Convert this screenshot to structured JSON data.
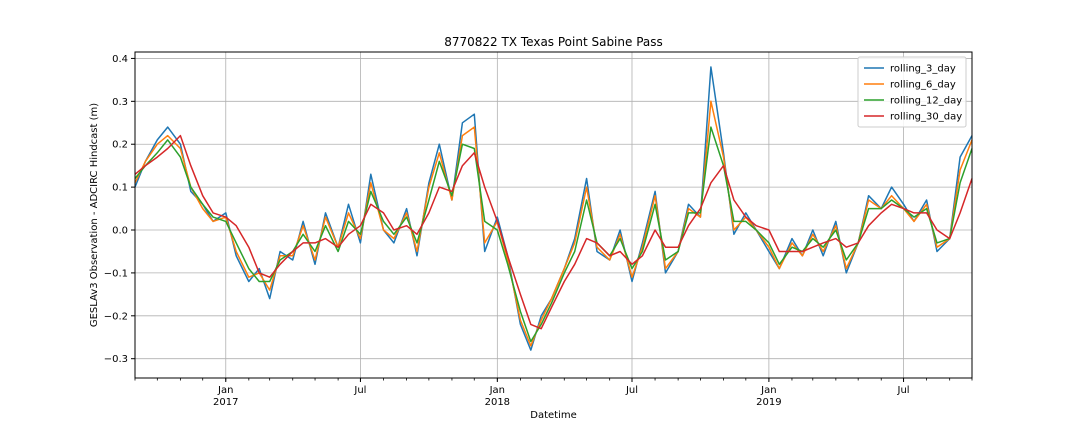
{
  "chart_data": {
    "type": "line",
    "title": "8770822 TX Texas Point Sabine Pass",
    "xlabel": "Datetime",
    "ylabel": "GESLAv3 Observation - ADCIRC Hindcast (m)",
    "xlim": [
      "2016-09-01",
      "2019-10-01"
    ],
    "ylim": [
      -0.345,
      0.415
    ],
    "yticks": [
      -0.3,
      -0.2,
      -0.1,
      0.0,
      0.1,
      0.2,
      0.3,
      0.4
    ],
    "ytick_labels": [
      "−0.3",
      "−0.2",
      "−0.1",
      "0.0",
      "0.1",
      "0.2",
      "0.3",
      "0.4"
    ],
    "xticks_major": [
      {
        "date": "2017-01-01",
        "month": "Jan",
        "year": "2017"
      },
      {
        "date": "2017-07-01",
        "month": "Jul",
        "year": ""
      },
      {
        "date": "2018-01-01",
        "month": "Jan",
        "year": "2018"
      },
      {
        "date": "2018-07-01",
        "month": "Jul",
        "year": ""
      },
      {
        "date": "2019-01-01",
        "month": "Jan",
        "year": "2019"
      },
      {
        "date": "2019-07-01",
        "month": "Jul",
        "year": ""
      }
    ],
    "grid": true,
    "legend_position": "top-right",
    "series": [
      {
        "name": "rolling_3_day",
        "color": "#1f77b4"
      },
      {
        "name": "rolling_6_day",
        "color": "#ff7f0e"
      },
      {
        "name": "rolling_12_day",
        "color": "#2ca02c"
      },
      {
        "name": "rolling_30_day",
        "color": "#d62728"
      }
    ],
    "x": [
      "2016-09-01",
      "2016-09-15",
      "2016-10-01",
      "2016-10-15",
      "2016-11-01",
      "2016-11-15",
      "2016-12-01",
      "2016-12-15",
      "2017-01-01",
      "2017-01-15",
      "2017-02-01",
      "2017-02-15",
      "2017-03-01",
      "2017-03-15",
      "2017-04-01",
      "2017-04-15",
      "2017-05-01",
      "2017-05-15",
      "2017-06-01",
      "2017-06-15",
      "2017-07-01",
      "2017-07-15",
      "2017-08-01",
      "2017-08-15",
      "2017-09-01",
      "2017-09-15",
      "2017-10-01",
      "2017-10-15",
      "2017-11-01",
      "2017-11-15",
      "2017-12-01",
      "2017-12-15",
      "2018-01-01",
      "2018-01-15",
      "2018-02-01",
      "2018-02-15",
      "2018-03-01",
      "2018-03-15",
      "2018-04-01",
      "2018-04-15",
      "2018-05-01",
      "2018-05-15",
      "2018-06-01",
      "2018-06-15",
      "2018-07-01",
      "2018-07-15",
      "2018-08-01",
      "2018-08-15",
      "2018-09-01",
      "2018-09-15",
      "2018-10-01",
      "2018-10-15",
      "2018-11-01",
      "2018-11-15",
      "2018-12-01",
      "2018-12-15",
      "2019-01-01",
      "2019-01-15",
      "2019-02-01",
      "2019-02-15",
      "2019-03-01",
      "2019-03-15",
      "2019-04-01",
      "2019-04-15",
      "2019-05-01",
      "2019-05-15",
      "2019-06-01",
      "2019-06-15",
      "2019-07-01",
      "2019-07-15",
      "2019-08-01",
      "2019-08-15",
      "2019-09-01",
      "2019-09-15",
      "2019-10-01"
    ],
    "values": {
      "rolling_3_day": [
        0.1,
        0.16,
        0.21,
        0.24,
        0.2,
        0.09,
        0.06,
        0.02,
        0.04,
        -0.06,
        -0.12,
        -0.09,
        -0.16,
        -0.05,
        -0.07,
        0.02,
        -0.08,
        0.04,
        -0.04,
        0.06,
        -0.03,
        0.13,
        0.0,
        -0.03,
        0.05,
        -0.06,
        0.11,
        0.2,
        0.07,
        0.25,
        0.27,
        -0.05,
        0.03,
        -0.06,
        -0.22,
        -0.28,
        -0.2,
        -0.16,
        -0.09,
        -0.02,
        0.12,
        -0.05,
        -0.07,
        0.0,
        -0.12,
        -0.03,
        0.09,
        -0.1,
        -0.05,
        0.06,
        0.03,
        0.38,
        0.18,
        -0.01,
        0.04,
        0.0,
        -0.05,
        -0.09,
        -0.02,
        -0.06,
        0.0,
        -0.06,
        0.02,
        -0.1,
        -0.03,
        0.08,
        0.05,
        0.1,
        0.06,
        0.02,
        0.07,
        -0.05,
        -0.02,
        0.17,
        0.22
      ],
      "rolling_6_day": [
        0.11,
        0.16,
        0.2,
        0.22,
        0.19,
        0.1,
        0.05,
        0.02,
        0.03,
        -0.05,
        -0.11,
        -0.1,
        -0.14,
        -0.06,
        -0.06,
        0.01,
        -0.07,
        0.03,
        -0.04,
        0.04,
        -0.02,
        0.11,
        0.0,
        -0.02,
        0.04,
        -0.05,
        0.1,
        0.18,
        0.07,
        0.22,
        0.24,
        -0.03,
        0.02,
        -0.07,
        -0.21,
        -0.27,
        -0.21,
        -0.16,
        -0.09,
        -0.03,
        0.1,
        -0.04,
        -0.07,
        -0.01,
        -0.11,
        -0.04,
        0.08,
        -0.09,
        -0.05,
        0.05,
        0.03,
        0.3,
        0.17,
        0.0,
        0.03,
        0.0,
        -0.04,
        -0.09,
        -0.03,
        -0.06,
        -0.01,
        -0.05,
        0.01,
        -0.09,
        -0.03,
        0.07,
        0.05,
        0.08,
        0.05,
        0.02,
        0.06,
        -0.04,
        -0.02,
        0.14,
        0.21
      ],
      "rolling_12_day": [
        0.12,
        0.15,
        0.18,
        0.21,
        0.17,
        0.1,
        0.06,
        0.03,
        0.02,
        -0.03,
        -0.09,
        -0.12,
        -0.12,
        -0.07,
        -0.05,
        -0.01,
        -0.05,
        0.01,
        -0.05,
        0.02,
        -0.01,
        0.09,
        0.02,
        -0.01,
        0.03,
        -0.03,
        0.07,
        0.16,
        0.08,
        0.2,
        0.19,
        0.02,
        0.0,
        -0.08,
        -0.19,
        -0.26,
        -0.22,
        -0.17,
        -0.1,
        -0.05,
        0.07,
        -0.03,
        -0.06,
        -0.02,
        -0.09,
        -0.05,
        0.06,
        -0.07,
        -0.05,
        0.04,
        0.04,
        0.24,
        0.15,
        0.02,
        0.02,
        0.0,
        -0.03,
        -0.08,
        -0.04,
        -0.05,
        -0.02,
        -0.04,
        0.0,
        -0.07,
        -0.03,
        0.05,
        0.05,
        0.07,
        0.05,
        0.03,
        0.05,
        -0.03,
        -0.02,
        0.11,
        0.19
      ],
      "rolling_30_day": [
        0.13,
        0.15,
        0.17,
        0.19,
        0.22,
        0.15,
        0.08,
        0.04,
        0.03,
        0.01,
        -0.04,
        -0.1,
        -0.11,
        -0.08,
        -0.05,
        -0.03,
        -0.03,
        -0.02,
        -0.04,
        -0.01,
        0.01,
        0.06,
        0.04,
        0.0,
        0.01,
        -0.01,
        0.04,
        0.1,
        0.09,
        0.15,
        0.18,
        0.1,
        0.02,
        -0.06,
        -0.15,
        -0.22,
        -0.23,
        -0.18,
        -0.12,
        -0.08,
        -0.02,
        -0.03,
        -0.06,
        -0.05,
        -0.08,
        -0.06,
        0.0,
        -0.04,
        -0.04,
        0.01,
        0.05,
        0.11,
        0.15,
        0.07,
        0.03,
        0.01,
        0.0,
        -0.05,
        -0.05,
        -0.05,
        -0.04,
        -0.03,
        -0.02,
        -0.04,
        -0.03,
        0.01,
        0.04,
        0.06,
        0.05,
        0.04,
        0.04,
        0.0,
        -0.02,
        0.04,
        0.12
      ]
    }
  }
}
